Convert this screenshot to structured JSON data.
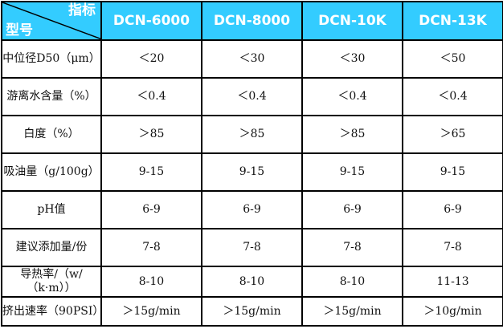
{
  "header": {
    "corner_top": "指标",
    "corner_bottom": "型号",
    "models": [
      "DCN-6000",
      "DCN-8000",
      "DCN-10K",
      "DCN-13K"
    ]
  },
  "colors": {
    "header_bg": "#33ccff",
    "header_text": "#ffffff"
  },
  "rows": [
    {
      "label": "中位径D50（μm）",
      "values": [
        "＜20",
        "＜30",
        "＜30",
        "＜50"
      ]
    },
    {
      "label": "游离水含量（%）",
      "values": [
        "＜0.4",
        "＜0.4",
        "＜0.4",
        "＜0.4"
      ]
    },
    {
      "label": "白度（%）",
      "values": [
        "＞85",
        "＞85",
        "＞85",
        "＞65"
      ]
    },
    {
      "label": "吸油量（g/100g）",
      "values": [
        "9-15",
        "9-15",
        "9-15",
        "9-15"
      ]
    },
    {
      "label": "pH值",
      "values": [
        "6-9",
        "6-9",
        "6-9",
        "6-9"
      ]
    },
    {
      "label": "建议添加量/份",
      "values": [
        "7-8",
        "7-8",
        "7-8",
        "7-8"
      ]
    },
    {
      "label": "导热率/（w/（k·m））",
      "values": [
        "8-10",
        "8-10",
        "8-10",
        "11-13"
      ]
    },
    {
      "label": "挤出速率（90PSI）",
      "values": [
        "＞15g/min",
        "＞15g/min",
        "＞15g/min",
        "＞10g/min"
      ]
    }
  ]
}
